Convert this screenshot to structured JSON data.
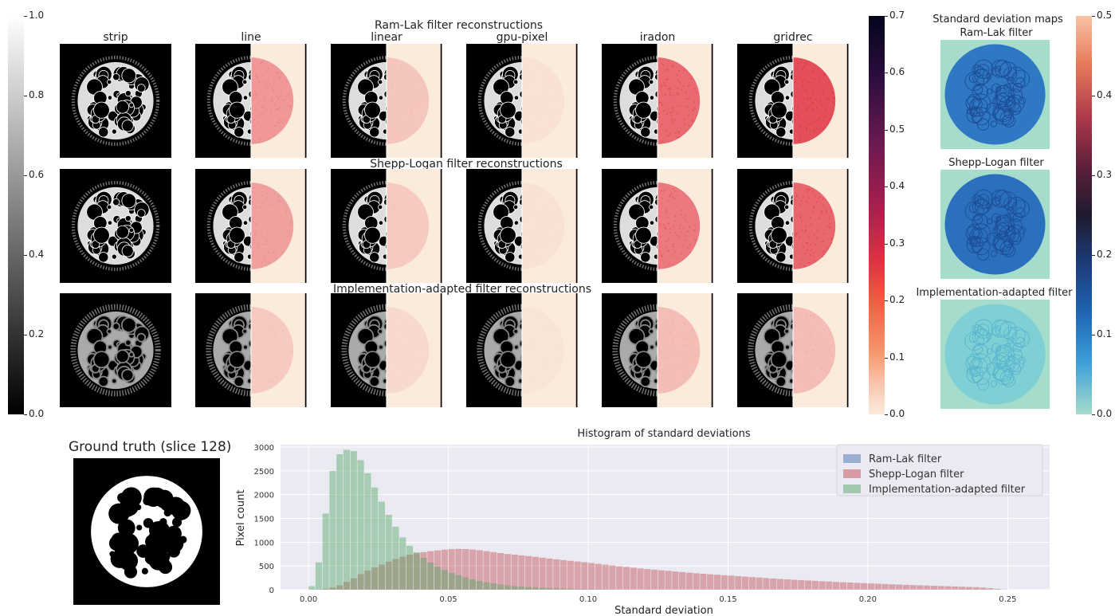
{
  "figure": {
    "row_titles": [
      "Ram-Lak filter reconstructions",
      "Shepp-Logan filter reconstructions",
      "Implementation-adapted filter reconstructions"
    ],
    "columns": [
      "strip",
      "line",
      "linear",
      "gpu-pixel",
      "iradon",
      "gridrec"
    ],
    "grey_colorbar_ticks": [
      "1.0",
      "0.8",
      "0.6",
      "0.4",
      "0.2",
      "0.0"
    ],
    "rocket_colorbar_ticks": [
      "0.7",
      "0.6",
      "0.5",
      "0.4",
      "0.3",
      "0.2",
      "0.1",
      "0.0"
    ],
    "std_maps": {
      "title": "Standard deviation maps",
      "labels": [
        "Ram-Lak filter",
        "Shepp-Logan filter",
        "Implementation-adapted filter"
      ]
    },
    "std_colorbar_ticks": [
      "0.5",
      "0.4",
      "0.3",
      "0.2",
      "0.1",
      "0.0"
    ],
    "ground_truth_title": "Ground truth (slice 128)",
    "colors": {
      "ram_lak": "#4c72b0",
      "shepp_logan": "#c44e52",
      "adapted": "#55a868",
      "plot_bg": "#eaeaf2"
    }
  },
  "chart_data": {
    "type": "bar",
    "title": "Histogram of standard deviations",
    "xlabel": "Standard deviation",
    "ylabel": "Pixel count",
    "xlim": [
      -0.01,
      0.265
    ],
    "ylim": [
      0,
      3050
    ],
    "x_ticks": [
      "0.00",
      "0.05",
      "0.10",
      "0.15",
      "0.20",
      "0.25"
    ],
    "y_ticks": [
      "0",
      "500",
      "1000",
      "1500",
      "2000",
      "2500",
      "3000"
    ],
    "grid": true,
    "legend_position": "top-right",
    "bin_width": 0.0025,
    "series": [
      {
        "name": "Ram-Lak filter",
        "color": "#4c72b0",
        "x": [
          0.005,
          0.05,
          0.1,
          0.15,
          0.2,
          0.25
        ],
        "values": [
          0,
          0,
          0,
          0,
          0,
          0
        ]
      },
      {
        "name": "Shepp-Logan filter",
        "color": "#c44e52",
        "x": [
          0.0,
          0.005,
          0.01,
          0.015,
          0.02,
          0.025,
          0.03,
          0.035,
          0.04,
          0.045,
          0.05,
          0.055,
          0.06,
          0.065,
          0.07,
          0.08,
          0.09,
          0.1,
          0.11,
          0.12,
          0.13,
          0.14,
          0.15,
          0.16,
          0.17,
          0.18,
          0.19,
          0.2,
          0.21,
          0.22,
          0.23,
          0.24,
          0.25
        ],
        "values": [
          0,
          5,
          60,
          200,
          370,
          500,
          620,
          720,
          780,
          820,
          850,
          860,
          840,
          800,
          760,
          700,
          630,
          570,
          500,
          440,
          390,
          340,
          300,
          260,
          220,
          190,
          160,
          135,
          110,
          90,
          70,
          50,
          0
        ]
      },
      {
        "name": "Implementation-adapted filter",
        "color": "#55a868",
        "x": [
          0.0,
          0.0025,
          0.005,
          0.0075,
          0.01,
          0.0125,
          0.015,
          0.0175,
          0.02,
          0.0225,
          0.025,
          0.0275,
          0.03,
          0.0325,
          0.035,
          0.0375,
          0.04,
          0.045,
          0.05,
          0.055,
          0.06,
          0.065,
          0.07,
          0.075,
          0.08,
          0.09,
          0.1,
          0.11
        ],
        "values": [
          0,
          150,
          1000,
          2200,
          2800,
          2900,
          2980,
          2850,
          2600,
          2300,
          2000,
          1700,
          1450,
          1200,
          1000,
          850,
          720,
          520,
          380,
          280,
          200,
          140,
          100,
          70,
          50,
          25,
          10,
          0
        ]
      }
    ]
  }
}
